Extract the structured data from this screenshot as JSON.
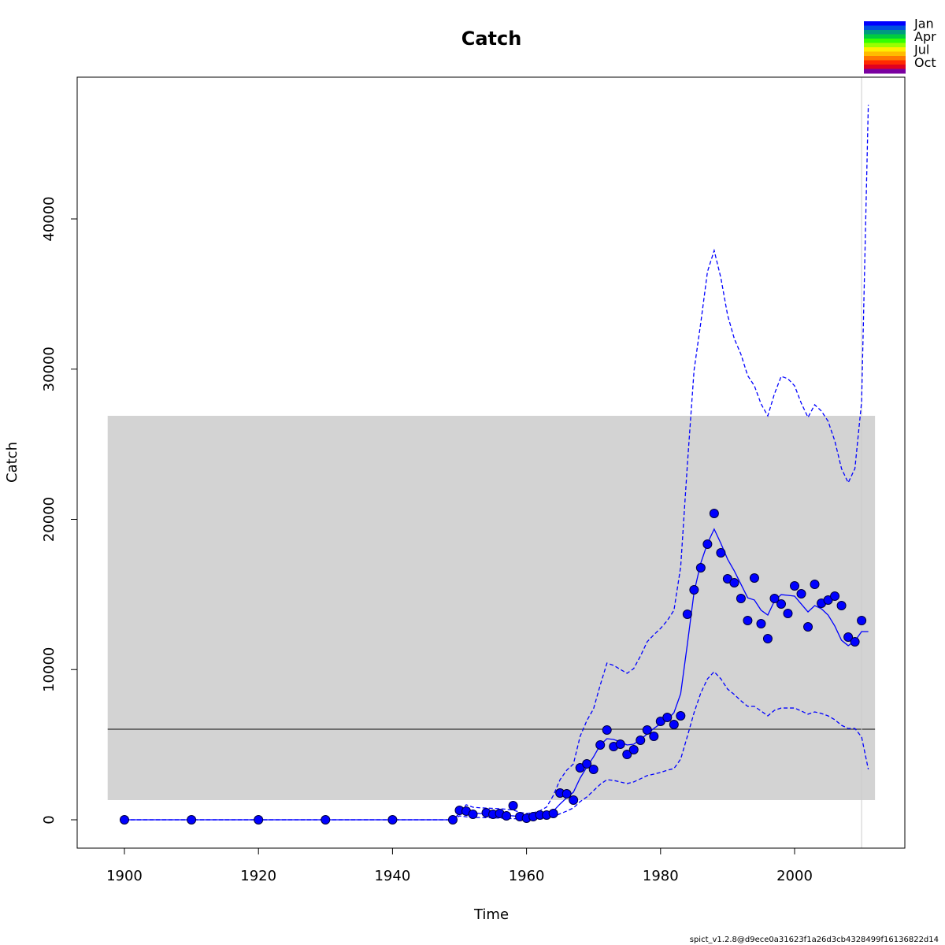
{
  "chart_data": {
    "type": "line",
    "title": "Catch",
    "x_label": "Time",
    "y_label": "Catch",
    "xlim": [
      1892.95,
      2016.45
    ],
    "ylim": [
      -1887,
      49436
    ],
    "xticks": [
      1900,
      1920,
      1940,
      1960,
      1980,
      2000
    ],
    "yticks": [
      0,
      10000,
      20000,
      30000,
      40000
    ],
    "band": {
      "xlim": [
        1897.5,
        2012
      ],
      "ylim": [
        1311,
        26894
      ],
      "color": "#d3d3d3"
    },
    "hline": 6029,
    "vline": 2010,
    "series": [
      {
        "kind": "points",
        "color": "#0000ff",
        "x": [
          1900,
          1910,
          1920,
          1930,
          1940,
          1949,
          1950,
          1951,
          1952,
          1954,
          1955,
          1956,
          1957,
          1958,
          1959,
          1960,
          1961,
          1962,
          1963,
          1964,
          1965,
          1966,
          1967,
          1968,
          1969,
          1970,
          1971,
          1972,
          1973,
          1974,
          1975,
          1976,
          1977,
          1978,
          1979,
          1980,
          1981,
          1982,
          1983,
          1984,
          1985,
          1986,
          1987,
          1988,
          1989,
          1990,
          1991,
          1992,
          1993,
          1994,
          1995,
          1996,
          1997,
          1998,
          1999,
          2000,
          2001,
          2002,
          2003,
          2004,
          2005,
          2006,
          2007,
          2008,
          2009,
          2010
        ],
        "values": [
          0,
          0,
          0,
          0,
          0,
          0,
          630,
          577,
          367,
          470,
          367,
          420,
          262,
          944,
          210,
          105,
          210,
          315,
          315,
          420,
          1782,
          1730,
          1311,
          3460,
          3722,
          3355,
          4980,
          5976,
          4875,
          5033,
          4351,
          4666,
          5295,
          5976,
          5557,
          6553,
          6815,
          6343,
          6920,
          13683,
          15308,
          16776,
          18349,
          20393,
          17772,
          16042,
          15780,
          14731,
          13263,
          16094,
          13054,
          12058,
          14731,
          14364,
          13735,
          15570,
          15046,
          12844,
          15675,
          14417,
          14626,
          14888,
          14260,
          12163,
          11848,
          13263
        ]
      },
      {
        "kind": "line",
        "linestyle": "solid",
        "color": "#0000ff",
        "x": [
          1900,
          1949,
          1950,
          1951,
          1952,
          1953,
          1954,
          1955,
          1956,
          1957,
          1958,
          1959,
          1960,
          1961,
          1962,
          1963,
          1964,
          1965,
          1966,
          1967,
          1968,
          1969,
          1970,
          1971,
          1972,
          1973,
          1974,
          1975,
          1976,
          1977,
          1978,
          1979,
          1980,
          1981,
          1982,
          1983,
          1984,
          1985,
          1986,
          1987,
          1988,
          1989,
          1990,
          1991,
          1992,
          1993,
          1994,
          1995,
          1996,
          1997,
          1998,
          1999,
          2000,
          2001,
          2002,
          2003,
          2004,
          2005,
          2006,
          2007,
          2008,
          2009,
          2010,
          2011
        ],
        "values": [
          0,
          0,
          420,
          520,
          470,
          420,
          400,
          370,
          330,
          290,
          260,
          210,
          160,
          180,
          210,
          320,
          580,
          1050,
          1470,
          1840,
          2780,
          3510,
          4190,
          4980,
          5400,
          5350,
          5190,
          4980,
          5030,
          5350,
          5710,
          6080,
          6400,
          6660,
          7130,
          8390,
          11690,
          15150,
          17090,
          18400,
          19350,
          18400,
          17350,
          16570,
          15680,
          14780,
          14630,
          13950,
          13630,
          14570,
          14990,
          14940,
          14890,
          14360,
          13840,
          14260,
          14050,
          13630,
          12900,
          11950,
          11590,
          11900,
          12530,
          12530
        ]
      },
      {
        "kind": "line",
        "linestyle": "dashed",
        "color": "#0000ff",
        "x": [
          1900,
          1949,
          1950,
          1951,
          1952,
          1953,
          1954,
          1955,
          1956,
          1957,
          1958,
          1959,
          1960,
          1961,
          1962,
          1963,
          1964,
          1965,
          1966,
          1967,
          1968,
          1969,
          1970,
          1971,
          1972,
          1973,
          1974,
          1975,
          1976,
          1977,
          1978,
          1979,
          1980,
          1981,
          1982,
          1983,
          1984,
          1985,
          1986,
          1987,
          1988,
          1989,
          1990,
          1991,
          1992,
          1993,
          1994,
          1995,
          1996,
          1997,
          1998,
          1999,
          2000,
          2001,
          2002,
          2003,
          2004,
          2005,
          2006,
          2007,
          2008,
          2009,
          2010,
          2011
        ],
        "values": [
          0,
          0,
          420,
          1000,
          840,
          800,
          780,
          760,
          740,
          700,
          650,
          500,
          420,
          470,
          600,
          850,
          1620,
          2670,
          3300,
          3720,
          5560,
          6600,
          7390,
          8970,
          10430,
          10280,
          10010,
          9750,
          10070,
          10900,
          11850,
          12320,
          12740,
          13260,
          13950,
          16830,
          23640,
          29930,
          33080,
          36490,
          37900,
          36070,
          33600,
          32030,
          30980,
          29570,
          28890,
          27680,
          26890,
          28360,
          29520,
          29360,
          28890,
          27730,
          26790,
          27630,
          27210,
          26530,
          25220,
          23380,
          22440,
          23380,
          27840,
          47600
        ]
      },
      {
        "kind": "line",
        "linestyle": "dashed",
        "color": "#0000ff",
        "x": [
          1900,
          1949,
          1950,
          1951,
          1952,
          1953,
          1954,
          1955,
          1956,
          1957,
          1958,
          1959,
          1960,
          1961,
          1962,
          1963,
          1964,
          1965,
          1966,
          1967,
          1968,
          1969,
          1970,
          1971,
          1972,
          1973,
          1974,
          1975,
          1976,
          1977,
          1978,
          1979,
          1980,
          1981,
          1982,
          1983,
          1984,
          1985,
          1986,
          1987,
          1988,
          1989,
          1990,
          1991,
          1992,
          1993,
          1994,
          1995,
          1996,
          1997,
          1998,
          1999,
          2000,
          2001,
          2002,
          2003,
          2004,
          2005,
          2006,
          2007,
          2008,
          2009,
          2010,
          2011
        ],
        "values": [
          0,
          0,
          260,
          200,
          160,
          150,
          140,
          130,
          110,
          90,
          80,
          50,
          0,
          20,
          50,
          100,
          210,
          400,
          580,
          790,
          1210,
          1520,
          1940,
          2360,
          2670,
          2620,
          2520,
          2410,
          2520,
          2730,
          2940,
          3040,
          3150,
          3300,
          3410,
          4040,
          5560,
          7130,
          8440,
          9380,
          9860,
          9380,
          8700,
          8340,
          7920,
          7550,
          7550,
          7240,
          6920,
          7290,
          7440,
          7440,
          7440,
          7240,
          7030,
          7180,
          7080,
          6920,
          6660,
          6290,
          6080,
          6080,
          5510,
          3360
        ]
      }
    ],
    "legend": {
      "labels": [
        "Jan",
        "Apr",
        "Jul",
        "Oct"
      ],
      "colors": [
        "#0000ff",
        "#0050e0",
        "#009a80",
        "#00cc40",
        "#33ff00",
        "#99ff00",
        "#ffee00",
        "#ffbb00",
        "#ff7700",
        "#ff2a00",
        "#e00020",
        "#7a00a0"
      ]
    },
    "footer": "spict_v1.2.8@d9ece0a31623f1a26d3cb4328499f16136822d14"
  }
}
